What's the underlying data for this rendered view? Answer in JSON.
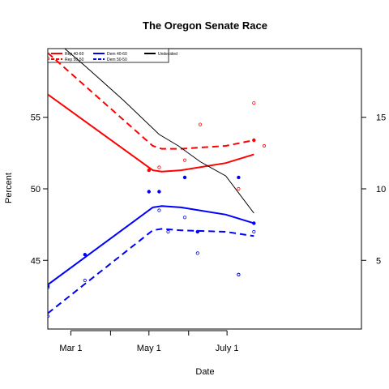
{
  "chart_data": {
    "type": "line",
    "title": "The Oregon Senate Race",
    "xlabel": "Date",
    "ylabel": "Percent",
    "x_tick_labels": [
      "Mar 1",
      "May 1",
      "July 1"
    ],
    "x_tick_values": [
      59,
      120,
      181
    ],
    "x_minor_ticks": [
      90,
      151
    ],
    "xlim": [
      41,
      286
    ],
    "ylim": [
      40.2,
      59.8
    ],
    "y_ticks": [
      45,
      50,
      55
    ],
    "y2_ticks": [
      5,
      10,
      15
    ],
    "y2_label": "",
    "legend": {
      "position": "top-left",
      "entries": [
        {
          "label": "Rep 40-60",
          "color": "#ff0000",
          "dash": "solid"
        },
        {
          "label": "Rep 50-50",
          "color": "#ff0000",
          "dash": "dashed"
        },
        {
          "label": "Dem 40-60",
          "color": "#0000ff",
          "dash": "solid"
        },
        {
          "label": "Dem 50-50",
          "color": "#0000ff",
          "dash": "dashed"
        },
        {
          "label": "Undecided",
          "color": "#000000",
          "dash": "solid"
        }
      ]
    },
    "series": [
      {
        "name": "Rep 40-60",
        "axis": "left",
        "color": "#ff0000",
        "dash": "solid",
        "width": 2,
        "x": [
          41,
          123,
          130,
          145,
          180,
          202
        ],
        "y": [
          56.6,
          51.3,
          51.2,
          51.3,
          51.8,
          52.4
        ]
      },
      {
        "name": "Rep 50-50",
        "axis": "left",
        "color": "#ff0000",
        "dash": "dashed",
        "width": 2,
        "x": [
          41,
          123,
          130,
          145,
          180,
          202
        ],
        "y": [
          59.5,
          53.0,
          52.8,
          52.8,
          53.0,
          53.4
        ]
      },
      {
        "name": "Dem 40-60",
        "axis": "left",
        "color": "#0000ff",
        "dash": "solid",
        "width": 2,
        "x": [
          41,
          123,
          130,
          145,
          180,
          202
        ],
        "y": [
          43.3,
          48.7,
          48.8,
          48.7,
          48.2,
          47.6
        ]
      },
      {
        "name": "Dem 50-50",
        "axis": "left",
        "color": "#0000ff",
        "dash": "dashed",
        "width": 2,
        "x": [
          41,
          123,
          130,
          145,
          180,
          202
        ],
        "y": [
          41.3,
          47.1,
          47.2,
          47.1,
          47.0,
          46.7
        ]
      },
      {
        "name": "Undecided",
        "axis": "right",
        "color": "#000000",
        "dash": "solid",
        "width": 1,
        "x": [
          45,
          70,
          100,
          128,
          143,
          160,
          180,
          202
        ],
        "y": [
          20.5,
          18.6,
          16.2,
          13.8,
          13.0,
          11.9,
          10.9,
          8.3
        ]
      }
    ],
    "points": [
      {
        "group": "rep",
        "shape": "open",
        "color": "#ff0000",
        "x": [
          41,
          128,
          148,
          160,
          190,
          202,
          210
        ],
        "y": [
          59.1,
          51.5,
          52.0,
          54.5,
          50.0,
          56.0,
          53.0
        ]
      },
      {
        "group": "dem",
        "shape": "open",
        "color": "#0000ff",
        "x": [
          41,
          128,
          135,
          148,
          190,
          202
        ],
        "y": [
          41.1,
          48.5,
          47.0,
          48.0,
          44.0,
          47.0
        ]
      },
      {
        "group": "dem",
        "shape": "filled",
        "color": "#0000ff",
        "x": [
          41,
          70,
          120,
          128,
          148,
          158,
          190,
          202
        ],
        "y": [
          43.2,
          45.4,
          49.8,
          49.8,
          50.8,
          47.0,
          50.8,
          47.6
        ]
      },
      {
        "group": "rep",
        "shape": "filled",
        "color": "#ff0000",
        "x": [
          120,
          202
        ],
        "y": [
          51.3,
          53.4
        ]
      },
      {
        "group": "dem",
        "shape": "open",
        "color": "#0000ff",
        "x": [
          41,
          70,
          158,
          190
        ],
        "y": [
          43.1,
          43.6,
          45.5,
          44.0
        ]
      }
    ]
  }
}
